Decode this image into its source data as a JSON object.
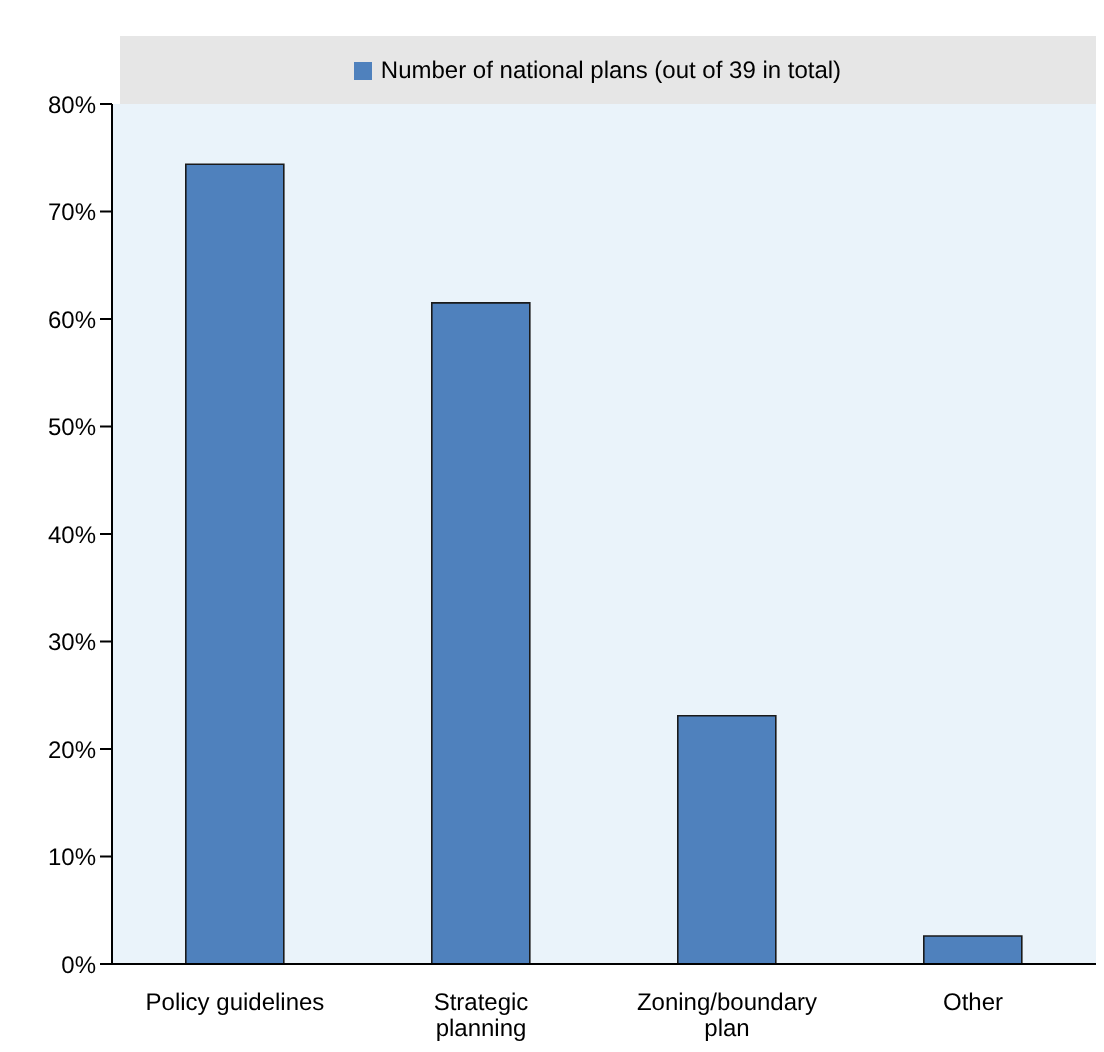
{
  "chart_data": {
    "type": "bar",
    "categories": [
      "Policy guidelines",
      "Strategic planning",
      "Zoning/boundary plan",
      "Other"
    ],
    "series": [
      {
        "name": "Number of national plans (out of 39 in total)",
        "color": "#4f81bd",
        "values": [
          74.4,
          61.5,
          23.1,
          2.6
        ]
      }
    ],
    "ylim": [
      0,
      80
    ],
    "yticks": [
      {
        "value": 0,
        "label": "0%"
      },
      {
        "value": 10,
        "label": "10%"
      },
      {
        "value": 20,
        "label": "20%"
      },
      {
        "value": 30,
        "label": "30%"
      },
      {
        "value": 40,
        "label": "40%"
      },
      {
        "value": 50,
        "label": "50%"
      },
      {
        "value": 60,
        "label": "60%"
      },
      {
        "value": 70,
        "label": "70%"
      },
      {
        "value": 80,
        "label": "80%"
      }
    ],
    "grid": false,
    "legend": "top"
  }
}
